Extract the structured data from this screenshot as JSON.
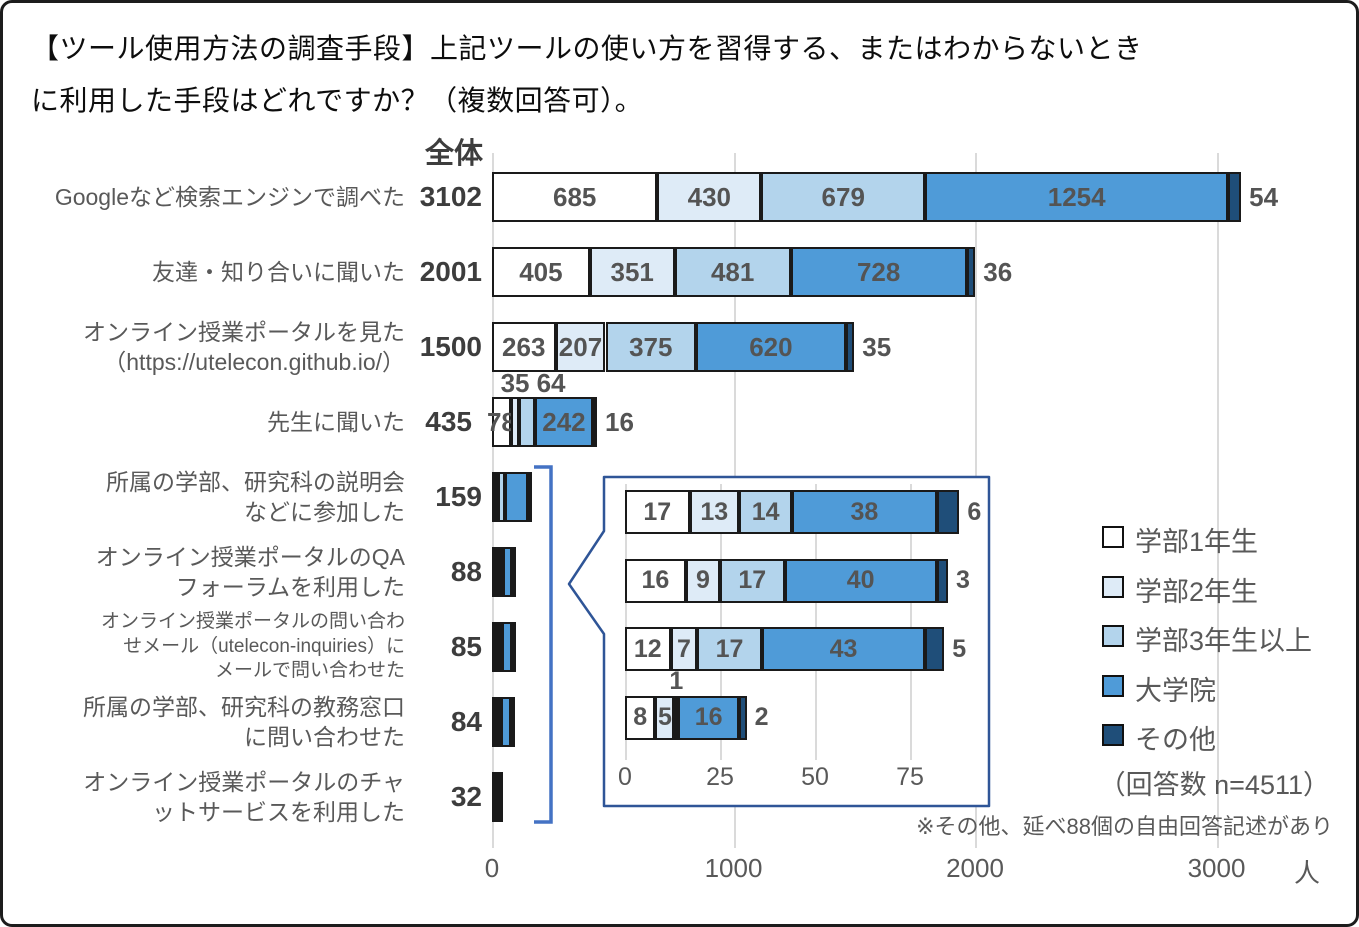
{
  "header": {
    "title_line1": "【ツール使用方法の調査手段】上記ツールの使い方を習得する、またはわからないとき",
    "title_line2": "に利用した手段はどれですか？（複数回答可）。"
  },
  "colors": {
    "series": [
      "#FFFFFF",
      "#DEEBF7",
      "#B3D4EC",
      "#4F9BD8",
      "#1F4E79"
    ],
    "bar_border": "#1a1a1a",
    "grid": "#dadada",
    "bracket": "#4472C4",
    "inset_border": "#2F5597",
    "label_text": "#545454",
    "axis_text": "#595959"
  },
  "chart_data": {
    "type": "bar",
    "stacked": true,
    "orientation": "horizontal",
    "title": "【ツール使用方法の調査手段】上記ツールの使い方を習得する、またはわからないときに利用した手段はどれですか？（複数回答可）。",
    "axis_unit": "人",
    "response_count_label": "（回答数 n=4511）",
    "footnote": "※その他、延べ88個の自由回答記述があり",
    "total_column_header": "全体",
    "grid": true,
    "legend": {
      "position": "right",
      "items": [
        {
          "label": "学部1年生",
          "color": "#FFFFFF"
        },
        {
          "label": "学部2年生",
          "color": "#DEEBF7"
        },
        {
          "label": "学部3年生以上",
          "color": "#B3D4EC"
        },
        {
          "label": "大学院",
          "color": "#4F9BD8"
        },
        {
          "label": "その他",
          "color": "#1F4E79"
        }
      ]
    },
    "series_names": [
      "学部1年生",
      "学部2年生",
      "学部3年生以上",
      "大学院",
      "その他"
    ],
    "main_chart": {
      "xlim": [
        0,
        3500
      ],
      "axis_ticks": [
        0,
        1000,
        2000,
        3000
      ],
      "rows": [
        {
          "category_lines": [
            "Googleなど検索エンジンで調べた"
          ],
          "total": 3102,
          "values": [
            685,
            430,
            679,
            1254,
            54
          ],
          "label_placement": [
            "in",
            "in",
            "in",
            "in",
            "right"
          ]
        },
        {
          "category_lines": [
            "友達・知り合いに聞いた"
          ],
          "total": 2001,
          "values": [
            405,
            351,
            481,
            728,
            36
          ],
          "label_placement": [
            "in",
            "in",
            "in",
            "in",
            "right"
          ]
        },
        {
          "category_lines": [
            "オンライン授業ポータルを見た",
            "（https://utelecon.github.io/）"
          ],
          "total": 1500,
          "values": [
            263,
            207,
            375,
            620,
            35
          ],
          "label_placement": [
            "in",
            "in",
            "in",
            "in",
            "right"
          ]
        },
        {
          "category_lines": [
            "先生に聞いた"
          ],
          "total": 435,
          "values": [
            78,
            35,
            64,
            242,
            16
          ],
          "label_placement": [
            "center",
            "above",
            "above",
            "in",
            "right"
          ]
        },
        {
          "category_lines": [
            "所属の学部、研究科の説明会",
            "などに参加した"
          ],
          "total": 159,
          "values": [
            14,
            12,
            28,
            95,
            10
          ],
          "values_estimated": true,
          "label_placement": [
            "none",
            "none",
            "none",
            "none",
            "none"
          ]
        },
        {
          "category_lines": [
            "オンライン授業ポータルのQA",
            "フォーラムを利用した"
          ],
          "total": 88,
          "values": [
            17,
            13,
            14,
            38,
            6
          ],
          "label_placement": [
            "none",
            "none",
            "none",
            "none",
            "none"
          ]
        },
        {
          "category_lines": [
            "オンライン授業ポータルの問い合わ",
            "せメール（utelecon-inquiries）に",
            "メールで問い合わせた"
          ],
          "small_font": true,
          "total": 85,
          "values": [
            16,
            9,
            17,
            40,
            3
          ],
          "label_placement": [
            "none",
            "none",
            "none",
            "none",
            "none"
          ]
        },
        {
          "category_lines": [
            "所属の学部、研究科の教務窓口",
            "に問い合わせた"
          ],
          "total": 84,
          "values": [
            12,
            7,
            17,
            43,
            5
          ],
          "label_placement": [
            "none",
            "none",
            "none",
            "none",
            "none"
          ]
        },
        {
          "category_lines": [
            "オンライン授業ポータルのチャ",
            "ットサービスを利用した"
          ],
          "total": 32,
          "values": [
            8,
            5,
            1,
            16,
            2
          ],
          "label_placement": [
            "none",
            "none",
            "none",
            "none",
            "none"
          ]
        }
      ]
    },
    "inset_chart": {
      "xlim": [
        0,
        95
      ],
      "axis_ticks": [
        0,
        25,
        50,
        75
      ],
      "rows": [
        {
          "ref_total": 88,
          "values": [
            17,
            13,
            14,
            38,
            6
          ],
          "label_placement": [
            "in",
            "in",
            "in",
            "in",
            "right"
          ]
        },
        {
          "ref_total": 85,
          "values": [
            16,
            9,
            17,
            40,
            3
          ],
          "label_placement": [
            "in",
            "in",
            "in",
            "in",
            "right"
          ]
        },
        {
          "ref_total": 84,
          "values": [
            12,
            7,
            17,
            43,
            5
          ],
          "label_placement": [
            "in",
            "in",
            "in",
            "in",
            "right"
          ]
        },
        {
          "ref_total": 32,
          "values": [
            8,
            5,
            1,
            16,
            2
          ],
          "label_placement": [
            "in",
            "in",
            "above",
            "in",
            "right"
          ]
        }
      ]
    }
  }
}
